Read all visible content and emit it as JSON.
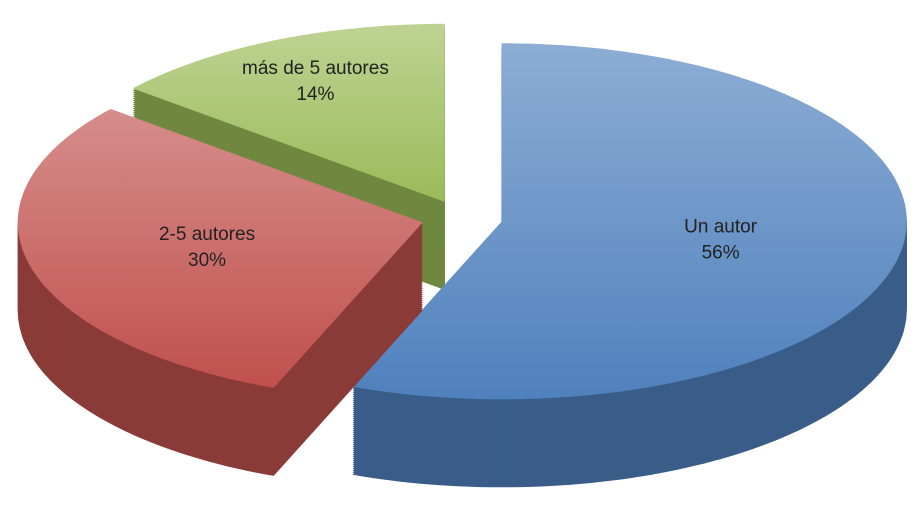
{
  "chart_data": {
    "type": "pie",
    "categories": [
      "Un autor",
      "2-5 autores",
      "más de 5 autores"
    ],
    "values": [
      56,
      30,
      14
    ],
    "value_labels": [
      "56%",
      "30%",
      "14%"
    ],
    "colors": [
      "#4f81bd",
      "#c0504d",
      "#9bbb59"
    ]
  }
}
